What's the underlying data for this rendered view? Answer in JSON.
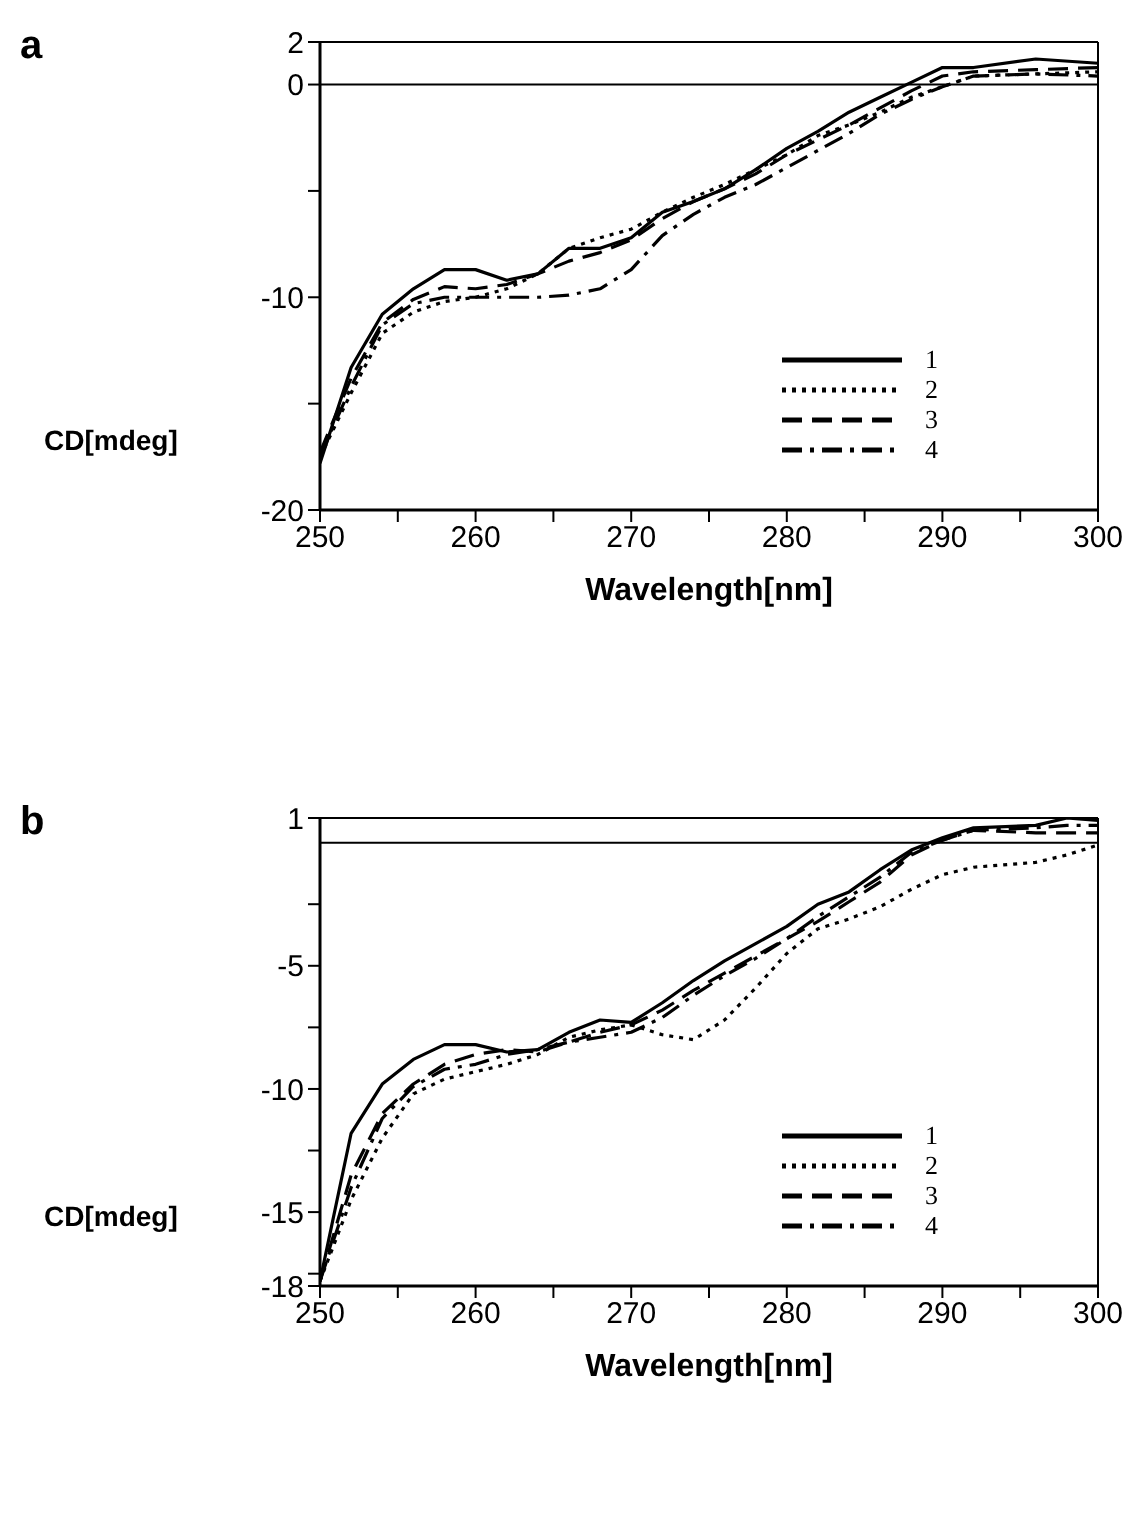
{
  "chart_data": [
    {
      "type": "line",
      "title": "a",
      "xlabel": "Wavelength[nm]",
      "ylabel": "CD[mdeg]",
      "x": [
        250,
        252,
        254,
        256,
        258,
        260,
        262,
        264,
        266,
        268,
        270,
        272,
        274,
        276,
        278,
        280,
        282,
        284,
        286,
        288,
        290,
        292,
        296,
        300
      ],
      "xlim": [
        250,
        300
      ],
      "xticks": [
        250,
        {
          "value": 255,
          "label": null
        },
        260,
        {
          "value": 265,
          "label": null
        },
        270,
        {
          "value": 275,
          "label": null
        },
        280,
        {
          "value": 285,
          "label": null
        },
        290,
        {
          "value": 295,
          "label": null
        },
        300
      ],
      "ylim": [
        -20,
        2
      ],
      "yticks": [
        -20,
        {
          "value": -15,
          "label": null
        },
        -10,
        {
          "value": -5,
          "label": null
        },
        0,
        2
      ],
      "ref_lines": [
        {
          "axis": "y",
          "value": 0
        }
      ],
      "legend": "right",
      "grid": false,
      "marker": "none",
      "series": [
        {
          "name": "1",
          "color": "#000000",
          "line_style": "solid",
          "values": [
            -17.8,
            -13.3,
            -10.8,
            -9.6,
            -8.7,
            -8.7,
            -9.2,
            -8.9,
            -7.7,
            -7.7,
            -7.2,
            -6.0,
            -5.5,
            -4.9,
            -4.0,
            -3.0,
            -2.2,
            -1.3,
            -0.6,
            0.1,
            0.8,
            0.8,
            1.2,
            1.0
          ]
        },
        {
          "name": "2",
          "color": "#000000",
          "line_style": "dotted",
          "values": [
            -17.5,
            -14.5,
            -11.7,
            -10.7,
            -10.2,
            -10.0,
            -9.6,
            -8.9,
            -7.7,
            -7.2,
            -6.8,
            -6.0,
            -5.3,
            -4.7,
            -4.0,
            -3.3,
            -2.4,
            -1.9,
            -1.3,
            -0.6,
            -0.1,
            0.4,
            0.5,
            0.6
          ]
        },
        {
          "name": "3",
          "color": "#000000",
          "line_style": "dashed",
          "values": [
            -17.3,
            -13.8,
            -11.2,
            -10.1,
            -9.5,
            -9.6,
            -9.4,
            -8.9,
            -8.3,
            -7.9,
            -7.3,
            -6.3,
            -5.5,
            -4.9,
            -4.2,
            -3.3,
            -2.6,
            -1.9,
            -1.1,
            -0.3,
            0.4,
            0.6,
            0.7,
            0.8
          ]
        },
        {
          "name": "4",
          "color": "#000000",
          "line_style": "dashdot",
          "values": [
            -17.5,
            -14.2,
            -11.3,
            -10.3,
            -10.0,
            -10.0,
            -10.0,
            -10.0,
            -9.9,
            -9.6,
            -8.7,
            -7.1,
            -6.1,
            -5.3,
            -4.7,
            -3.9,
            -3.1,
            -2.3,
            -1.4,
            -0.7,
            -0.1,
            0.4,
            0.5,
            0.4
          ]
        }
      ]
    },
    {
      "type": "line",
      "title": "b",
      "xlabel": "Wavelength[nm]",
      "ylabel": "CD[mdeg]",
      "x": [
        250,
        252,
        254,
        256,
        258,
        260,
        262,
        264,
        266,
        268,
        270,
        272,
        274,
        276,
        278,
        280,
        282,
        284,
        286,
        288,
        290,
        292,
        296,
        298,
        300
      ],
      "xlim": [
        250,
        300
      ],
      "xticks": [
        250,
        {
          "value": 255,
          "label": null
        },
        260,
        {
          "value": 265,
          "label": null
        },
        270,
        {
          "value": 275,
          "label": null
        },
        280,
        {
          "value": 285,
          "label": null
        },
        290,
        {
          "value": 295,
          "label": null
        },
        300
      ],
      "ylim": [
        -18,
        1
      ],
      "yticks": [
        -18,
        {
          "value": -17.5,
          "label": null
        },
        -15,
        {
          "value": -12.5,
          "label": null
        },
        -10,
        {
          "value": -7.5,
          "label": null
        },
        -5,
        {
          "value": -2.5,
          "label": null
        },
        1
      ],
      "ref_lines": [
        {
          "axis": "y",
          "value": 0
        }
      ],
      "legend": "right",
      "grid": false,
      "marker": "none",
      "series": [
        {
          "name": "1",
          "color": "#000000",
          "line_style": "solid",
          "values": [
            -17.8,
            -11.8,
            -9.8,
            -8.8,
            -8.2,
            -8.2,
            -8.5,
            -8.4,
            -7.7,
            -7.2,
            -7.3,
            -6.5,
            -5.6,
            -4.8,
            -4.1,
            -3.4,
            -2.5,
            -2.0,
            -1.1,
            -0.3,
            0.2,
            0.6,
            0.7,
            1.0,
            0.9
          ]
        },
        {
          "name": "2",
          "color": "#000000",
          "line_style": "dotted",
          "values": [
            -17.8,
            -14.5,
            -12.0,
            -10.2,
            -9.6,
            -9.3,
            -9.0,
            -8.6,
            -7.9,
            -7.6,
            -7.4,
            -7.8,
            -8.0,
            -7.2,
            -5.9,
            -4.5,
            -3.5,
            -3.1,
            -2.6,
            -1.9,
            -1.3,
            -1.0,
            -0.8,
            -0.5,
            -0.1
          ]
        },
        {
          "name": "3",
          "color": "#000000",
          "line_style": "dashed",
          "values": [
            -17.8,
            -13.5,
            -11.0,
            -9.8,
            -9.0,
            -8.6,
            -8.4,
            -8.5,
            -8.1,
            -7.7,
            -7.4,
            -6.8,
            -6.0,
            -5.3,
            -4.6,
            -3.9,
            -3.2,
            -2.4,
            -1.6,
            -0.5,
            0.1,
            0.5,
            0.4,
            0.4,
            0.4
          ]
        },
        {
          "name": "4",
          "color": "#000000",
          "line_style": "dashdot",
          "values": [
            -17.8,
            -14.0,
            -11.2,
            -9.9,
            -9.2,
            -9.0,
            -8.6,
            -8.4,
            -8.1,
            -7.9,
            -7.7,
            -7.1,
            -6.2,
            -5.4,
            -4.7,
            -3.9,
            -3.0,
            -2.2,
            -1.4,
            -0.4,
            0.1,
            0.5,
            0.6,
            0.7,
            0.7
          ]
        }
      ]
    }
  ]
}
